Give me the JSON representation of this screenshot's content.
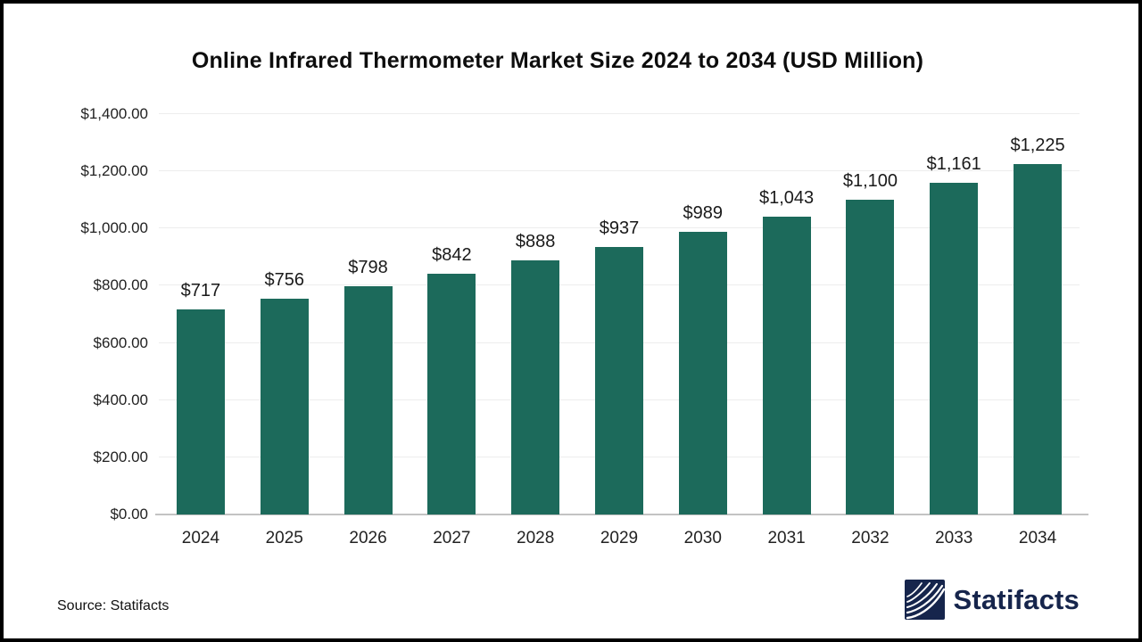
{
  "chart_data": {
    "type": "bar",
    "title": "Online Infrared Thermometer Market Size 2024 to 2034 (USD Million)",
    "categories": [
      "2024",
      "2025",
      "2026",
      "2027",
      "2028",
      "2029",
      "2030",
      "2031",
      "2032",
      "2033",
      "2034"
    ],
    "values": [
      717,
      756,
      798,
      842,
      888,
      937,
      989,
      1043,
      1100,
      1161,
      1225
    ],
    "bar_labels": [
      "$717",
      "$756",
      "$798",
      "$842",
      "$888",
      "$937",
      "$989",
      "$1,043",
      "$1,100",
      "$1,161",
      "$1,225"
    ],
    "xlabel": "",
    "ylabel": "",
    "ylim": [
      0,
      1400
    ],
    "y_ticks": [
      {
        "label": "$1,400.00",
        "value": 1400
      },
      {
        "label": "$1,200.00",
        "value": 1200
      },
      {
        "label": "$1,000.00",
        "value": 1000
      },
      {
        "label": "$800.00",
        "value": 800
      },
      {
        "label": "$600.00",
        "value": 600
      },
      {
        "label": "$400.00",
        "value": 400
      },
      {
        "label": "$200.00",
        "value": 200
      },
      {
        "label": "$0.00",
        "value": 0
      }
    ],
    "grid": "horizontal",
    "legend": "none",
    "bar_color": "#1c6a5b"
  },
  "footer": {
    "source": "Source: Statifacts",
    "logo_text": "Statifacts",
    "logo_color": "#16254c"
  }
}
